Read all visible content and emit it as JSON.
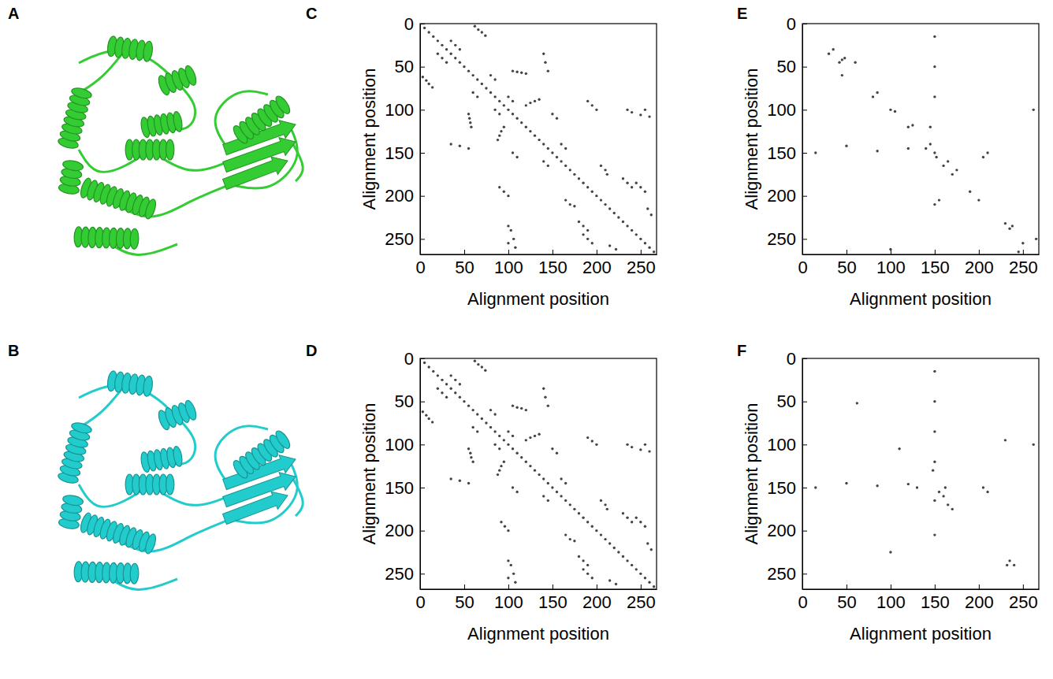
{
  "chart_data": [
    {
      "type": "structure",
      "panel": "A",
      "color": "#33cc33"
    },
    {
      "type": "structure",
      "panel": "B",
      "color": "#22cccc"
    },
    {
      "type": "scatter",
      "panel": "C",
      "xlabel": "Alignment position",
      "ylabel": "Alignment position",
      "xlim": [
        0,
        268
      ],
      "ylim": [
        268,
        0
      ],
      "xticks": [
        0,
        50,
        100,
        150,
        200,
        250
      ],
      "yticks": [
        0,
        50,
        100,
        150,
        200,
        250
      ],
      "series": [
        {
          "color": "#444444",
          "marker": "circle",
          "x": [
            0,
            5,
            10,
            15,
            20,
            25,
            30,
            35,
            40,
            45,
            50,
            55,
            60,
            65,
            70,
            75,
            80,
            85,
            90,
            95,
            100,
            105,
            110,
            115,
            120,
            125,
            130,
            135,
            140,
            145,
            150,
            155,
            160,
            165,
            170,
            175,
            180,
            185,
            190,
            195,
            200,
            205,
            210,
            215,
            220,
            225,
            230,
            235,
            240,
            245,
            250,
            255,
            260,
            265,
            3,
            7,
            10,
            14,
            20,
            25,
            30,
            55,
            56,
            57,
            58,
            35,
            45,
            55,
            95,
            92,
            90,
            88,
            90,
            95,
            100,
            100,
            103,
            106,
            100,
            108,
            165,
            170,
            175,
            185,
            190,
            195,
            180,
            185,
            190,
            105,
            110,
            60,
            65,
            215,
            222,
            140,
            145,
            85,
            90,
            62,
            66,
            70,
            74,
            35,
            40,
            45,
            105,
            110,
            115,
            120,
            140,
            142,
            145,
            120,
            125,
            130,
            135,
            190,
            195,
            200,
            235,
            240,
            250,
            255,
            260,
            205,
            210,
            212,
            245,
            250,
            255,
            230,
            235,
            240,
            150,
            155,
            80,
            85,
            258,
            262,
            160,
            165,
            100,
            105
          ],
          "values": [
            0,
            5,
            10,
            15,
            20,
            25,
            30,
            35,
            40,
            45,
            50,
            55,
            60,
            65,
            70,
            75,
            80,
            85,
            90,
            95,
            100,
            105,
            110,
            115,
            120,
            125,
            130,
            135,
            140,
            145,
            150,
            155,
            160,
            165,
            170,
            175,
            180,
            185,
            190,
            195,
            200,
            205,
            210,
            215,
            220,
            225,
            230,
            235,
            240,
            245,
            250,
            255,
            260,
            265,
            62,
            66,
            70,
            74,
            35,
            40,
            45,
            105,
            110,
            115,
            120,
            140,
            142,
            145,
            120,
            125,
            130,
            135,
            190,
            195,
            200,
            235,
            240,
            250,
            255,
            260,
            205,
            210,
            212,
            245,
            250,
            255,
            230,
            235,
            240,
            150,
            155,
            80,
            85,
            258,
            262,
            160,
            165,
            100,
            105,
            3,
            7,
            10,
            14,
            20,
            25,
            30,
            55,
            56,
            57,
            58,
            35,
            45,
            55,
            95,
            92,
            90,
            88,
            90,
            95,
            100,
            100,
            103,
            106,
            100,
            108,
            165,
            170,
            175,
            185,
            190,
            195,
            180,
            185,
            190,
            105,
            110,
            60,
            65,
            215,
            222,
            140,
            145,
            85,
            90
          ]
        }
      ]
    },
    {
      "type": "scatter",
      "panel": "D",
      "xlabel": "Alignment position",
      "ylabel": "Alignment position",
      "xlim": [
        0,
        268
      ],
      "ylim": [
        268,
        0
      ],
      "xticks": [
        0,
        50,
        100,
        150,
        200,
        250
      ],
      "yticks": [
        0,
        50,
        100,
        150,
        200,
        250
      ],
      "series": [
        {
          "color": "#444444",
          "marker": "circle",
          "x": [
            0,
            5,
            10,
            15,
            20,
            25,
            30,
            35,
            40,
            45,
            50,
            55,
            60,
            65,
            70,
            75,
            80,
            85,
            90,
            95,
            100,
            105,
            110,
            115,
            120,
            125,
            130,
            135,
            140,
            145,
            150,
            155,
            160,
            165,
            170,
            175,
            180,
            185,
            190,
            195,
            200,
            205,
            210,
            215,
            220,
            225,
            230,
            235,
            240,
            245,
            250,
            255,
            260,
            265,
            3,
            7,
            10,
            14,
            20,
            25,
            30,
            55,
            57,
            58,
            60,
            35,
            45,
            55,
            95,
            92,
            90,
            88,
            92,
            96,
            100,
            100,
            103,
            106,
            100,
            108,
            165,
            170,
            175,
            185,
            190,
            195,
            180,
            185,
            190,
            105,
            110,
            60,
            65,
            215,
            222,
            140,
            145,
            85,
            90,
            62,
            66,
            70,
            74,
            35,
            40,
            45,
            105,
            110,
            115,
            120,
            140,
            142,
            145,
            120,
            125,
            130,
            135,
            190,
            195,
            200,
            235,
            240,
            250,
            255,
            260,
            205,
            210,
            212,
            245,
            250,
            255,
            230,
            235,
            240,
            150,
            155,
            80,
            85,
            258,
            262,
            160,
            165,
            100,
            105
          ],
          "values": [
            0,
            5,
            10,
            15,
            20,
            25,
            30,
            35,
            40,
            45,
            50,
            55,
            60,
            65,
            70,
            75,
            80,
            85,
            90,
            95,
            100,
            105,
            110,
            115,
            120,
            125,
            130,
            135,
            140,
            145,
            150,
            155,
            160,
            165,
            170,
            175,
            180,
            185,
            190,
            195,
            200,
            205,
            210,
            215,
            220,
            225,
            230,
            235,
            240,
            245,
            250,
            255,
            260,
            265,
            62,
            66,
            70,
            74,
            35,
            40,
            45,
            105,
            110,
            115,
            120,
            140,
            142,
            145,
            120,
            125,
            130,
            135,
            190,
            195,
            200,
            235,
            240,
            250,
            255,
            260,
            205,
            210,
            212,
            245,
            250,
            255,
            230,
            235,
            240,
            150,
            155,
            80,
            85,
            258,
            262,
            160,
            165,
            100,
            105,
            3,
            7,
            10,
            14,
            20,
            25,
            30,
            55,
            57,
            58,
            60,
            35,
            45,
            55,
            95,
            92,
            90,
            88,
            92,
            96,
            100,
            100,
            103,
            106,
            100,
            108,
            165,
            170,
            175,
            185,
            190,
            195,
            180,
            185,
            190,
            105,
            110,
            60,
            65,
            215,
            222,
            140,
            145,
            85,
            90
          ]
        }
      ]
    },
    {
      "type": "scatter",
      "panel": "E",
      "xlabel": "Alignment position",
      "ylabel": "Alignment position",
      "xlim": [
        0,
        268
      ],
      "ylim": [
        268,
        0
      ],
      "xticks": [
        0,
        50,
        100,
        150,
        200,
        250
      ],
      "yticks": [
        0,
        50,
        100,
        150,
        200,
        250
      ],
      "series": [
        {
          "color": "#444444",
          "marker": "circle",
          "x": [
            30,
            35,
            42,
            45,
            48,
            80,
            85,
            100,
            105,
            120,
            125,
            140,
            145,
            150,
            152,
            160,
            165,
            175,
            170,
            190,
            200,
            230,
            235,
            238,
            250,
            150,
            150,
            150,
            145,
            15,
            50,
            85,
            120,
            262,
            100,
            210,
            150,
            205,
            155,
            60,
            45,
            245,
            265
          ],
          "values": [
            35,
            30,
            45,
            42,
            40,
            85,
            80,
            100,
            102,
            120,
            118,
            145,
            140,
            150,
            155,
            165,
            160,
            170,
            175,
            195,
            205,
            232,
            238,
            235,
            255,
            15,
            50,
            85,
            120,
            150,
            142,
            148,
            145,
            100,
            262,
            150,
            210,
            155,
            205,
            45,
            60,
            265,
            250
          ]
        }
      ]
    },
    {
      "type": "scatter",
      "panel": "F",
      "xlabel": "Alignment position",
      "ylabel": "Alignment position",
      "xlim": [
        0,
        268
      ],
      "ylim": [
        268,
        0
      ],
      "xticks": [
        0,
        50,
        100,
        150,
        200,
        250
      ],
      "yticks": [
        0,
        50,
        100,
        150,
        200,
        250
      ],
      "series": [
        {
          "color": "#444444",
          "marker": "circle",
          "x": [
            150,
            150,
            150,
            150,
            148,
            15,
            50,
            85,
            120,
            130,
            155,
            160,
            162,
            150,
            205,
            150,
            210,
            100,
            230,
            235,
            240,
            232,
            62,
            110,
            170,
            165,
            262
          ],
          "values": [
            15,
            50,
            85,
            120,
            130,
            150,
            145,
            148,
            146,
            150,
            155,
            160,
            150,
            165,
            150,
            205,
            155,
            225,
            95,
            235,
            240,
            240,
            52,
            105,
            175,
            170,
            100
          ]
        }
      ]
    }
  ]
}
